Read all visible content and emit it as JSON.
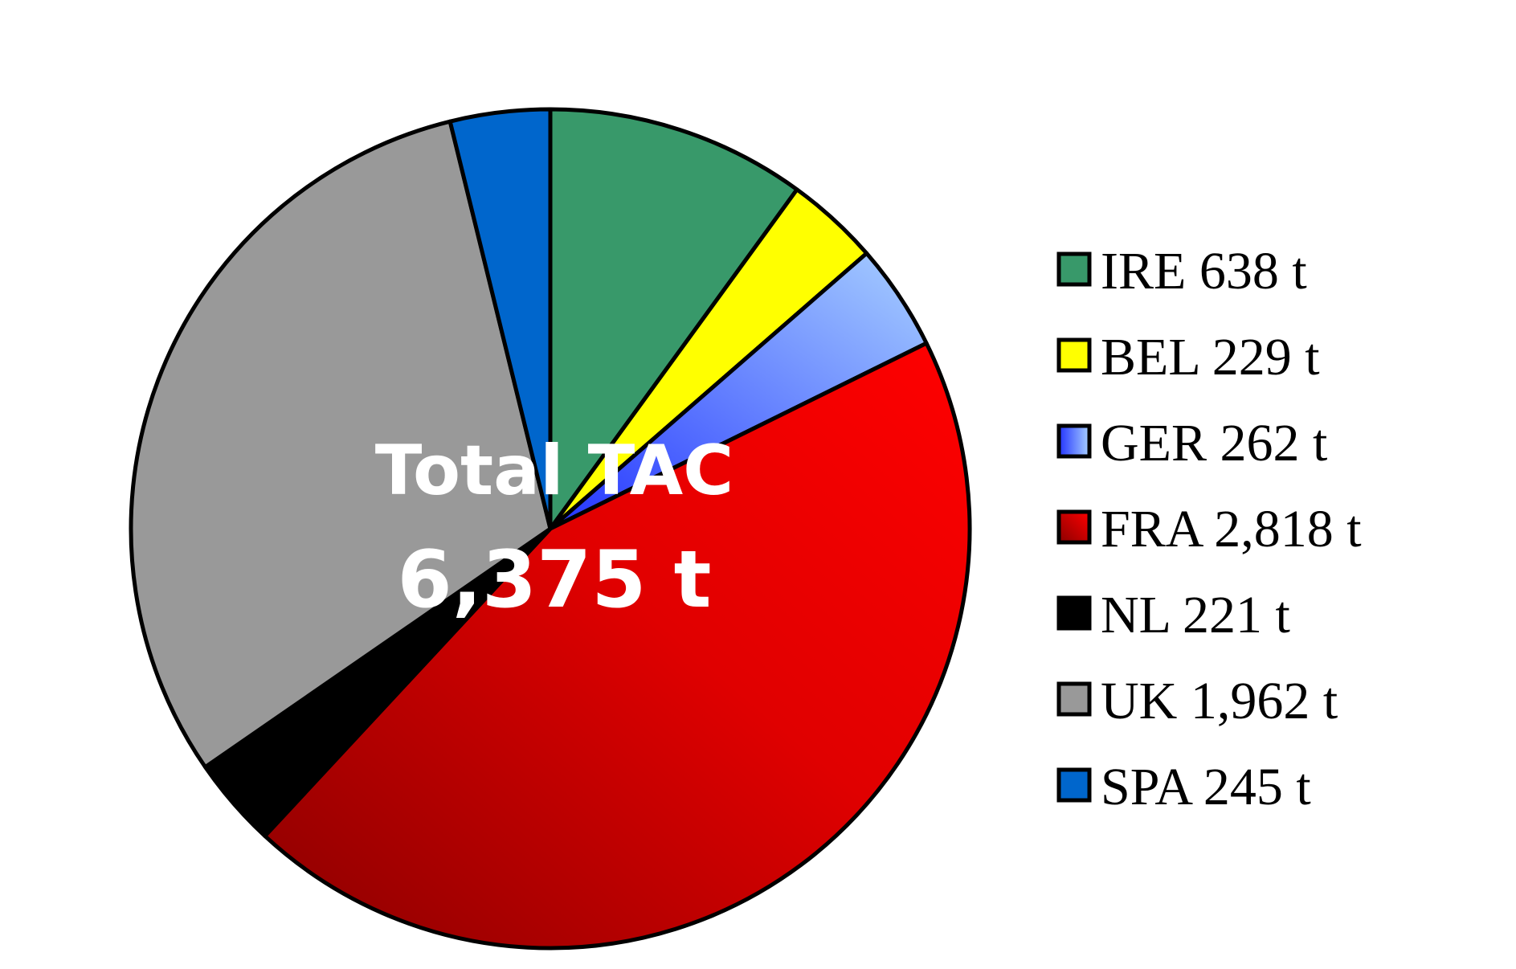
{
  "chart_data": {
    "type": "pie",
    "center_label": {
      "line1": "Total TAC",
      "line2": "6,375 t"
    },
    "legend_position": "right",
    "slices": [
      {
        "label": "IRE 638 t",
        "value": 638,
        "color": "#38996A"
      },
      {
        "label": "BEL 229 t",
        "value": 229,
        "color": "#FFFF00"
      },
      {
        "label": "GER 262 t",
        "value": 262,
        "color": "#6F8CFF"
      },
      {
        "label": "FRA 2,818 t",
        "value": 2818,
        "color": "#E00000"
      },
      {
        "label": "NL 221 t",
        "value": 221,
        "color": "#000000"
      },
      {
        "label": "UK 1,962 t",
        "value": 1962,
        "color": "#999999"
      },
      {
        "label": "SPA 245 t",
        "value": 245,
        "color": "#0066CC"
      }
    ]
  }
}
